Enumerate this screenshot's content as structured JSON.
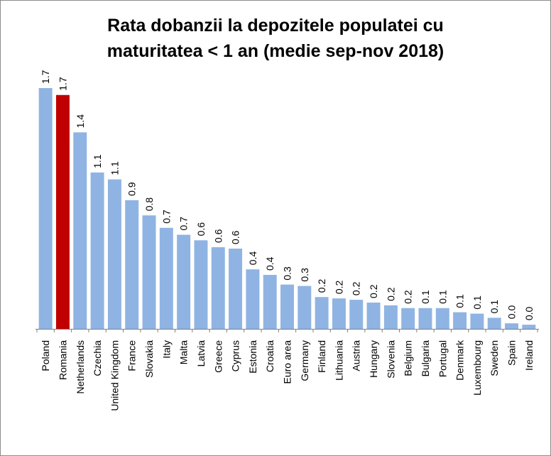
{
  "chart_data": {
    "type": "bar",
    "title": "Rata dobanzii la depozitele populației cu maturitatea < 1 an (medie sep-nov 2018)",
    "title_lines": [
      "Rata dobanzii la depozitele populatei cu",
      "maturitatea < 1 an (medie sep-nov 2018)"
    ],
    "xlabel": "",
    "ylabel": "",
    "ylim": [
      0,
      1.8
    ],
    "grid": false,
    "legend": "none",
    "categories": [
      "Poland",
      "Romania",
      "Netherlands",
      "Czechia",
      "United Kingdom",
      "France",
      "Slovakia",
      "Italy",
      "Malta",
      "Latvia",
      "Greece",
      "Cyprus",
      "Estonia",
      "Croatia",
      "Euro area",
      "Germany",
      "Finland",
      "Lithuania",
      "Austria",
      "Hungary",
      "Slovenia",
      "Belgium",
      "Bulgaria",
      "Portugal",
      "Denmark",
      "Luxembourg",
      "Sweden",
      "Spain",
      "Ireland"
    ],
    "values": [
      1.74,
      1.69,
      1.42,
      1.13,
      1.08,
      0.93,
      0.82,
      0.73,
      0.68,
      0.64,
      0.59,
      0.58,
      0.43,
      0.39,
      0.32,
      0.31,
      0.23,
      0.22,
      0.21,
      0.19,
      0.17,
      0.15,
      0.15,
      0.15,
      0.12,
      0.11,
      0.08,
      0.04,
      0.03
    ],
    "labels": [
      "1.7",
      "1.7",
      "1.4",
      "1.1",
      "1.1",
      "0.9",
      "0.8",
      "0.7",
      "0.7",
      "0.6",
      "0.6",
      "0.6",
      "0.4",
      "0.4",
      "0.3",
      "0.3",
      "0.2",
      "0.2",
      "0.2",
      "0.2",
      "0.2",
      "0.2",
      "0.1",
      "0.1",
      "0.1",
      "0.1",
      "0.1",
      "0.0",
      "0.0"
    ],
    "colors": {
      "default": "#8fb4e3",
      "highlight": "#c00000",
      "highlight_category": "Romania",
      "axis": "#808080"
    }
  }
}
